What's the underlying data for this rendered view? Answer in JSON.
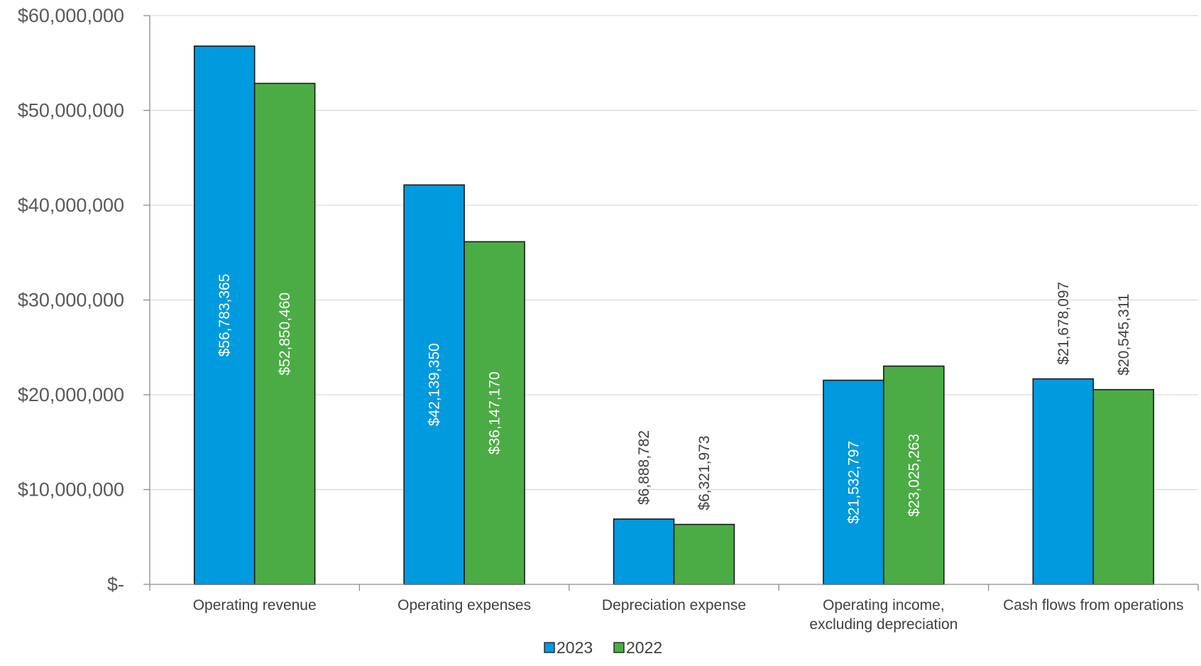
{
  "chart_data": {
    "type": "bar",
    "categories": [
      [
        "Operating revenue"
      ],
      [
        "Operating expenses"
      ],
      [
        "Depreciation expense"
      ],
      [
        "Operating income,",
        "excluding depreciation"
      ],
      [
        "Cash flows from operations"
      ]
    ],
    "series": [
      {
        "name": "2023",
        "color": "#009ADE",
        "values": [
          56783365,
          42139350,
          6888782,
          21532797,
          21678097
        ],
        "labels": [
          "$56,783,365",
          "$42,139,350",
          "$6,888,782",
          "$21,532,797",
          "$21,678,097"
        ],
        "label_inside": [
          true,
          true,
          false,
          true,
          false
        ]
      },
      {
        "name": "2022",
        "color": "#4BAC45",
        "values": [
          52850460,
          36147170,
          6321973,
          23025263,
          20545311
        ],
        "labels": [
          "$52,850,460",
          "$36,147,170",
          "$6,321,973",
          "$23,025,263",
          "$20,545,311"
        ],
        "label_inside": [
          true,
          true,
          false,
          true,
          false
        ]
      }
    ],
    "ylim": [
      0,
      60000000
    ],
    "yticks": [
      0,
      10000000,
      20000000,
      30000000,
      40000000,
      50000000,
      60000000
    ],
    "ytick_labels": [
      "$-",
      "$10,000,000",
      "$20,000,000",
      "$30,000,000",
      "$40,000,000",
      "$50,000,000",
      "$60,000,000"
    ],
    "xlabel": "",
    "ylabel": "",
    "title": "",
    "grid": true,
    "legend_position": "bottom",
    "label_color_inside": "#ffffff",
    "label_color_outside": "#404040"
  }
}
